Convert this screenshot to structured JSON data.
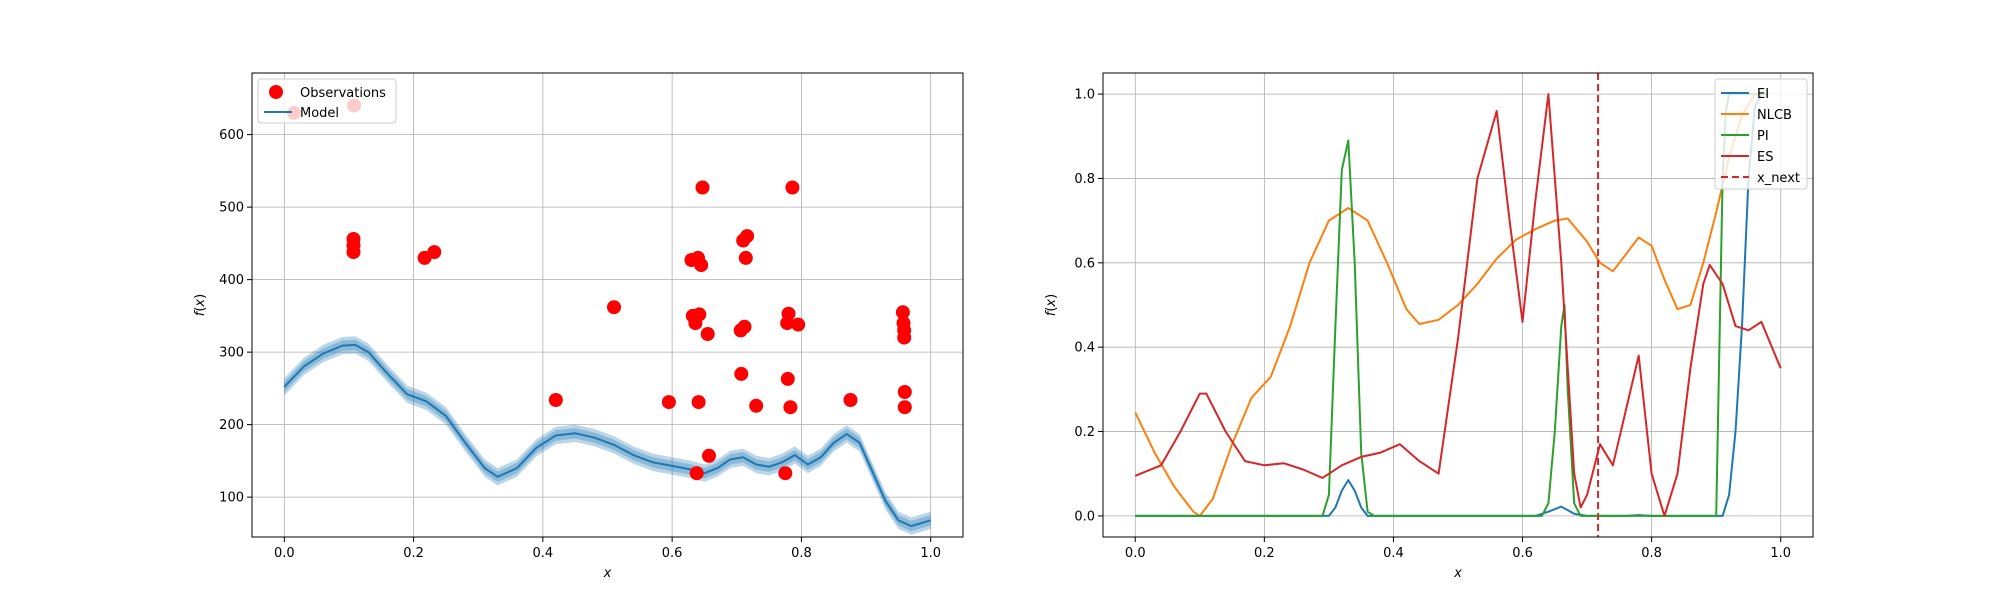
{
  "chart_data": [
    {
      "type": "scatter",
      "title": "",
      "xlabel": "x",
      "ylabel": "f(x)",
      "xlim": [
        -0.05,
        1.05
      ],
      "ylim": [
        45,
        685
      ],
      "xticks": [
        0.0,
        0.2,
        0.4,
        0.6,
        0.8,
        1.0
      ],
      "xtick_labels": [
        "0.0",
        "0.2",
        "0.4",
        "0.6",
        "0.8",
        "1.0"
      ],
      "yticks": [
        100,
        200,
        300,
        400,
        500,
        600
      ],
      "ytick_labels": [
        "100",
        "200",
        "300",
        "400",
        "500",
        "600"
      ],
      "grid": true,
      "legend": "top-left",
      "legend_entries": [
        "Observations",
        "Model"
      ],
      "colors": {
        "observations": "#ff0000",
        "model": "#1f77b4"
      },
      "observations": {
        "name": "Observations",
        "x": [
          0.015,
          0.107,
          0.107,
          0.107,
          0.108,
          0.217,
          0.232,
          0.42,
          0.51,
          0.595,
          0.63,
          0.632,
          0.636,
          0.638,
          0.64,
          0.641,
          0.642,
          0.645,
          0.647,
          0.655,
          0.657,
          0.706,
          0.707,
          0.71,
          0.712,
          0.714,
          0.716,
          0.73,
          0.775,
          0.778,
          0.779,
          0.78,
          0.783,
          0.786,
          0.795,
          0.876,
          0.957,
          0.958,
          0.959,
          0.959,
          0.96,
          0.96
        ],
        "y": [
          630,
          438,
          447,
          456,
          640,
          430,
          438,
          234,
          362,
          231,
          427,
          350,
          340,
          133,
          430,
          231,
          352,
          420,
          527,
          325,
          157,
          330,
          270,
          454,
          335,
          430,
          460,
          226,
          133,
          340,
          263,
          353,
          224,
          527,
          338,
          234,
          355,
          340,
          330,
          320,
          245,
          224
        ]
      },
      "model": {
        "name": "Model",
        "x": [
          0.0,
          0.03,
          0.06,
          0.09,
          0.11,
          0.13,
          0.16,
          0.19,
          0.22,
          0.25,
          0.28,
          0.31,
          0.33,
          0.36,
          0.39,
          0.42,
          0.45,
          0.48,
          0.51,
          0.54,
          0.57,
          0.6,
          0.63,
          0.65,
          0.67,
          0.69,
          0.71,
          0.73,
          0.75,
          0.77,
          0.79,
          0.81,
          0.83,
          0.85,
          0.87,
          0.89,
          0.91,
          0.93,
          0.95,
          0.97,
          1.0
        ],
        "y": [
          252,
          280,
          298,
          309,
          310,
          300,
          270,
          242,
          232,
          212,
          175,
          140,
          128,
          140,
          168,
          185,
          188,
          182,
          172,
          158,
          148,
          143,
          138,
          133,
          140,
          152,
          155,
          145,
          142,
          148,
          158,
          145,
          155,
          175,
          187,
          175,
          135,
          95,
          68,
          60,
          68
        ],
        "band_halfwidth": 12
      }
    },
    {
      "type": "line",
      "title": "",
      "xlabel": "x",
      "ylabel": "f(x)",
      "xlim": [
        -0.05,
        1.05
      ],
      "ylim": [
        -0.05,
        1.05
      ],
      "xticks": [
        0.0,
        0.2,
        0.4,
        0.6,
        0.8,
        1.0
      ],
      "xtick_labels": [
        "0.0",
        "0.2",
        "0.4",
        "0.6",
        "0.8",
        "1.0"
      ],
      "yticks": [
        0.0,
        0.2,
        0.4,
        0.6,
        0.8,
        1.0
      ],
      "ytick_labels": [
        "0.0",
        "0.2",
        "0.4",
        "0.6",
        "0.8",
        "1.0"
      ],
      "grid": true,
      "legend": "top-right",
      "legend_entries": [
        "EI",
        "NLCB",
        "PI",
        "ES",
        "x_next"
      ],
      "x_next": 0.717,
      "x_next_color": "#d62728",
      "series": [
        {
          "name": "EI",
          "color": "#1f77b4",
          "x": [
            0.0,
            0.3,
            0.31,
            0.32,
            0.33,
            0.34,
            0.35,
            0.36,
            0.62,
            0.64,
            0.66,
            0.68,
            0.7,
            0.76,
            0.78,
            0.8,
            0.9,
            0.91,
            0.92,
            0.93,
            0.94,
            0.95,
            0.96,
            0.97,
            0.98
          ],
          "y": [
            0.0,
            0.0,
            0.02,
            0.06,
            0.085,
            0.06,
            0.02,
            0.0,
            0.0,
            0.01,
            0.022,
            0.005,
            0.0,
            0.0,
            0.002,
            0.0,
            0.0,
            0.0,
            0.05,
            0.2,
            0.45,
            0.8,
            0.97,
            1.0,
            1.0
          ]
        },
        {
          "name": "NLCB",
          "color": "#ff7f0e",
          "x": [
            0.0,
            0.03,
            0.06,
            0.09,
            0.1,
            0.12,
            0.15,
            0.18,
            0.21,
            0.24,
            0.27,
            0.3,
            0.33,
            0.36,
            0.39,
            0.42,
            0.44,
            0.47,
            0.5,
            0.53,
            0.56,
            0.59,
            0.62,
            0.65,
            0.67,
            0.7,
            0.72,
            0.74,
            0.76,
            0.78,
            0.8,
            0.82,
            0.84,
            0.86,
            0.88,
            0.9,
            0.92,
            0.94,
            0.96,
            0.98
          ],
          "y": [
            0.245,
            0.15,
            0.07,
            0.01,
            0.0,
            0.04,
            0.17,
            0.28,
            0.33,
            0.45,
            0.6,
            0.7,
            0.73,
            0.7,
            0.6,
            0.49,
            0.455,
            0.465,
            0.5,
            0.55,
            0.61,
            0.655,
            0.68,
            0.7,
            0.705,
            0.65,
            0.6,
            0.58,
            0.62,
            0.66,
            0.64,
            0.56,
            0.49,
            0.5,
            0.6,
            0.72,
            0.85,
            0.95,
            1.0,
            1.0
          ]
        },
        {
          "name": "PI",
          "color": "#2ca02c",
          "x": [
            0.0,
            0.29,
            0.3,
            0.31,
            0.32,
            0.33,
            0.34,
            0.35,
            0.36,
            0.37,
            0.63,
            0.64,
            0.65,
            0.66,
            0.665,
            0.67,
            0.68,
            0.69,
            0.9,
            0.905,
            0.91,
            0.915,
            0.92,
            0.93,
            0.95,
            0.98
          ],
          "y": [
            0.0,
            0.0,
            0.05,
            0.45,
            0.82,
            0.89,
            0.6,
            0.15,
            0.01,
            0.0,
            0.0,
            0.03,
            0.2,
            0.45,
            0.5,
            0.3,
            0.03,
            0.0,
            0.0,
            0.4,
            0.8,
            0.96,
            1.0,
            1.0,
            1.0,
            1.0
          ]
        },
        {
          "name": "ES",
          "color": "#d62728",
          "x": [
            0.0,
            0.04,
            0.07,
            0.1,
            0.11,
            0.14,
            0.17,
            0.2,
            0.23,
            0.26,
            0.29,
            0.32,
            0.35,
            0.38,
            0.41,
            0.44,
            0.47,
            0.5,
            0.53,
            0.56,
            0.58,
            0.6,
            0.62,
            0.64,
            0.66,
            0.68,
            0.69,
            0.7,
            0.72,
            0.74,
            0.76,
            0.78,
            0.8,
            0.82,
            0.84,
            0.86,
            0.88,
            0.89,
            0.91,
            0.93,
            0.95,
            0.97,
            1.0
          ],
          "y": [
            0.095,
            0.12,
            0.2,
            0.29,
            0.29,
            0.2,
            0.13,
            0.12,
            0.125,
            0.11,
            0.09,
            0.12,
            0.14,
            0.15,
            0.17,
            0.13,
            0.1,
            0.42,
            0.8,
            0.96,
            0.7,
            0.46,
            0.75,
            1.0,
            0.6,
            0.1,
            0.02,
            0.05,
            0.17,
            0.12,
            0.25,
            0.38,
            0.1,
            0.0,
            0.1,
            0.35,
            0.55,
            0.595,
            0.55,
            0.45,
            0.44,
            0.46,
            0.35
          ]
        }
      ]
    }
  ]
}
